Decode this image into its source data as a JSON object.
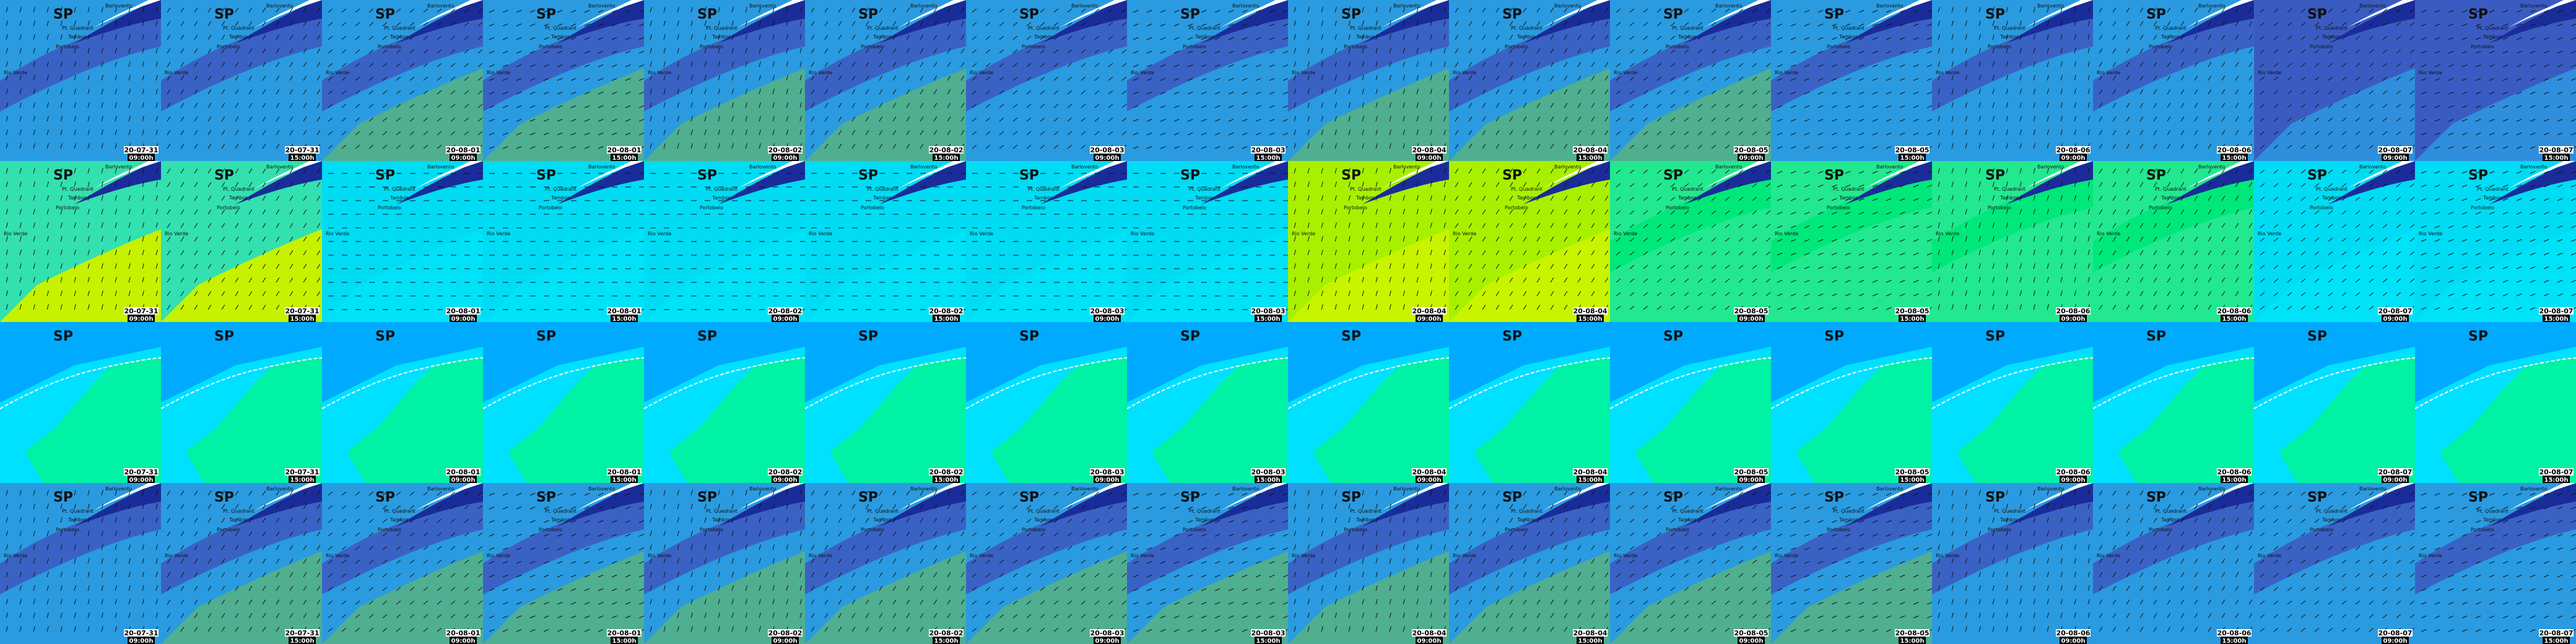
{
  "title": "SP",
  "places": [
    "Barlovento",
    "Pt. Quadrant",
    "Tambor",
    "Portobelo",
    "Rio Verde"
  ],
  "frames": [
    {
      "date": "20-07-31",
      "time": "09:00h"
    },
    {
      "date": "20-07-31",
      "time": "15:00h"
    },
    {
      "date": "20-08-01",
      "time": "09:00h"
    },
    {
      "date": "20-08-01",
      "time": "15:00h"
    },
    {
      "date": "20-08-02",
      "time": "09:00h"
    },
    {
      "date": "20-08-02",
      "time": "15:00h"
    },
    {
      "date": "20-08-03",
      "time": "09:00h"
    },
    {
      "date": "20-08-03",
      "time": "15:00h"
    },
    {
      "date": "20-08-04",
      "time": "09:00h"
    },
    {
      "date": "20-08-04",
      "time": "15:00h"
    },
    {
      "date": "20-08-05",
      "time": "09:00h"
    },
    {
      "date": "20-08-05",
      "time": "15:00h"
    },
    {
      "date": "20-08-06",
      "time": "09:00h"
    },
    {
      "date": "20-08-06",
      "time": "15:00h"
    },
    {
      "date": "20-08-07",
      "time": "09:00h"
    },
    {
      "date": "20-08-07",
      "time": "15:00h"
    }
  ]
}
